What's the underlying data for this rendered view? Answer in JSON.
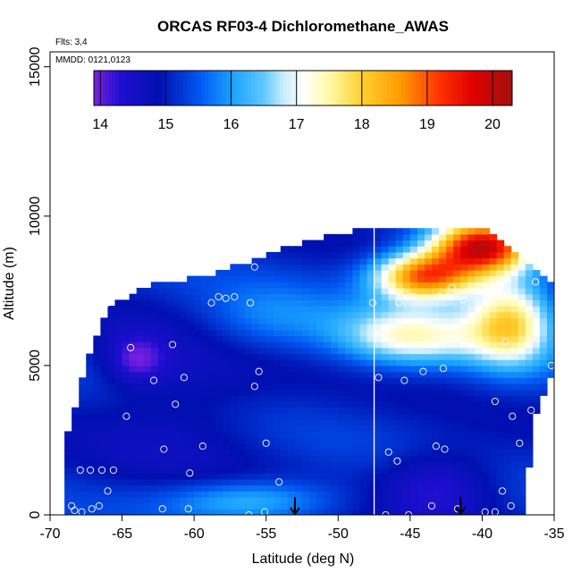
{
  "chart_data": {
    "type": "heatmap",
    "title": "ORCAS RF03-4 Dichloromethane_AWAS",
    "subtitle_flights": "Flts: 3,4",
    "subtitle_dates": "MMDD: 0121,0123",
    "xlabel": "Latitude (deg N)",
    "ylabel": "Altitude (m)",
    "xlim": [
      -70,
      -35
    ],
    "ylim": [
      0,
      15500
    ],
    "xticks": [
      -70,
      -65,
      -60,
      -55,
      -50,
      -45,
      -40,
      -35
    ],
    "xtick_labels": [
      "-70",
      "-65",
      "-60",
      "-55",
      "-50",
      "-45",
      "-40",
      "-35"
    ],
    "yticks": [
      0,
      5000,
      10000,
      15000
    ],
    "ytick_labels": [
      "0",
      "5000",
      "10000",
      "15000"
    ],
    "colorbar": {
      "range": [
        13.9,
        20.3
      ],
      "ticks": [
        14,
        15,
        16,
        17,
        18,
        19,
        20
      ],
      "tick_labels": [
        "14",
        "15",
        "16",
        "17",
        "18",
        "19",
        "20"
      ],
      "stops": [
        {
          "v": 13.9,
          "c": "#7b1fe0"
        },
        {
          "v": 14.3,
          "c": "#1f0fd0"
        },
        {
          "v": 14.9,
          "c": "#0010b0"
        },
        {
          "v": 15.5,
          "c": "#0055f0"
        },
        {
          "v": 16.0,
          "c": "#18a0ff"
        },
        {
          "v": 16.5,
          "c": "#60c8ff"
        },
        {
          "v": 16.8,
          "c": "#c8ecff"
        },
        {
          "v": 17.1,
          "c": "#ffffff"
        },
        {
          "v": 17.5,
          "c": "#fffaa8"
        },
        {
          "v": 18.0,
          "c": "#ffd030"
        },
        {
          "v": 18.6,
          "c": "#ff9a00"
        },
        {
          "v": 19.2,
          "c": "#ff3000"
        },
        {
          "v": 19.7,
          "c": "#e00000"
        },
        {
          "v": 20.3,
          "c": "#a01010"
        }
      ]
    },
    "coverage_envelope": [
      [
        -69.2,
        0
      ],
      [
        -69.2,
        2000
      ],
      [
        -67.5,
        5000
      ],
      [
        -66,
        7000
      ],
      [
        -63,
        7700
      ],
      [
        -59,
        8000
      ],
      [
        -54,
        8900
      ],
      [
        -50,
        9400
      ],
      [
        -47.5,
        9700
      ],
      [
        -40,
        9700
      ],
      [
        -37,
        8500
      ],
      [
        -35,
        7600
      ],
      [
        -35,
        5000
      ],
      [
        -36.5,
        3000
      ],
      [
        -37,
        0
      ]
    ],
    "field_features": [
      {
        "lat": -40,
        "alt": 9000,
        "value": 19.8,
        "spread_lat": 3.5,
        "spread_alt": 900
      },
      {
        "lat": -44,
        "alt": 8000,
        "value": 19.0,
        "spread_lat": 3.5,
        "spread_alt": 800
      },
      {
        "lat": -38,
        "alt": 6500,
        "value": 17.8,
        "spread_lat": 3,
        "spread_alt": 1500
      },
      {
        "lat": -45,
        "alt": 6000,
        "value": 17.2,
        "spread_lat": 5,
        "spread_alt": 1000
      },
      {
        "lat": -61,
        "alt": 4000,
        "value": 14.6,
        "spread_lat": 6,
        "spread_alt": 2500
      },
      {
        "lat": -55,
        "alt": 6500,
        "value": 15.8,
        "spread_lat": 5,
        "spread_alt": 1200
      },
      {
        "lat": -43,
        "alt": 1000,
        "value": 14.2,
        "spread_lat": 4,
        "spread_alt": 1200
      },
      {
        "lat": -56,
        "alt": 500,
        "value": 16.3,
        "spread_lat": 6,
        "spread_alt": 700
      },
      {
        "lat": -64,
        "alt": 5200,
        "value": 14.2,
        "spread_lat": 2,
        "spread_alt": 800
      }
    ],
    "vertical_line_lat": -47.5,
    "markers_lat": [
      -53,
      -41.5
    ],
    "samples": [
      [
        -68.5,
        300
      ],
      [
        -68.3,
        150
      ],
      [
        -67.9,
        1500
      ],
      [
        -67.2,
        1500
      ],
      [
        -66.4,
        1500
      ],
      [
        -65.6,
        1500
      ],
      [
        -66,
        800
      ],
      [
        -67.1,
        200
      ],
      [
        -67.8,
        100
      ],
      [
        -66.6,
        300
      ],
      [
        -62.2,
        200
      ],
      [
        -60.4,
        200
      ],
      [
        -64.7,
        3300
      ],
      [
        -62.1,
        2200
      ],
      [
        -60.3,
        1400
      ],
      [
        -59.4,
        2300
      ],
      [
        -55,
        2400
      ],
      [
        -61.3,
        3700
      ],
      [
        -62.8,
        4500
      ],
      [
        -60.7,
        4600
      ],
      [
        -55.8,
        4300
      ],
      [
        -55.5,
        4800
      ],
      [
        -64.4,
        5600
      ],
      [
        -61.5,
        5700
      ],
      [
        -66,
        7100
      ],
      [
        -58.8,
        7100
      ],
      [
        -58.3,
        7300
      ],
      [
        -57.8,
        7250
      ],
      [
        -57.2,
        7300
      ],
      [
        -56.1,
        7100
      ],
      [
        -55.8,
        8300
      ],
      [
        -54.1,
        1100
      ],
      [
        -56.2,
        0
      ],
      [
        -55.1,
        100
      ],
      [
        -47.6,
        7100
      ],
      [
        -45.8,
        7100
      ],
      [
        -44.9,
        7300
      ],
      [
        -43,
        7300
      ],
      [
        -42.1,
        7600
      ],
      [
        -41.3,
        7200
      ],
      [
        -36.3,
        7800
      ],
      [
        -38.6,
        7700
      ],
      [
        -40.6,
        6500
      ],
      [
        -38.4,
        5800
      ],
      [
        -42.7,
        4900
      ],
      [
        -44.1,
        4800
      ],
      [
        -45.4,
        4500
      ],
      [
        -47.2,
        4600
      ],
      [
        -39.1,
        3800
      ],
      [
        -37.9,
        3300
      ],
      [
        -36.6,
        3500
      ],
      [
        -35.2,
        5000
      ],
      [
        -46.5,
        2100
      ],
      [
        -43.2,
        2300
      ],
      [
        -42.6,
        2200
      ],
      [
        -45.9,
        1800
      ],
      [
        -38.6,
        800
      ],
      [
        -38,
        300
      ],
      [
        -39.1,
        100
      ],
      [
        -41.7,
        200
      ],
      [
        -43.5,
        300
      ],
      [
        -45.1,
        0
      ],
      [
        -46.7,
        0
      ],
      [
        -39.8,
        100
      ],
      [
        -37.4,
        2400
      ],
      [
        -35.7,
        1400
      ],
      [
        -36.1,
        500
      ],
      [
        -36.7,
        200
      ],
      [
        -48.5,
        9800
      ]
    ]
  }
}
